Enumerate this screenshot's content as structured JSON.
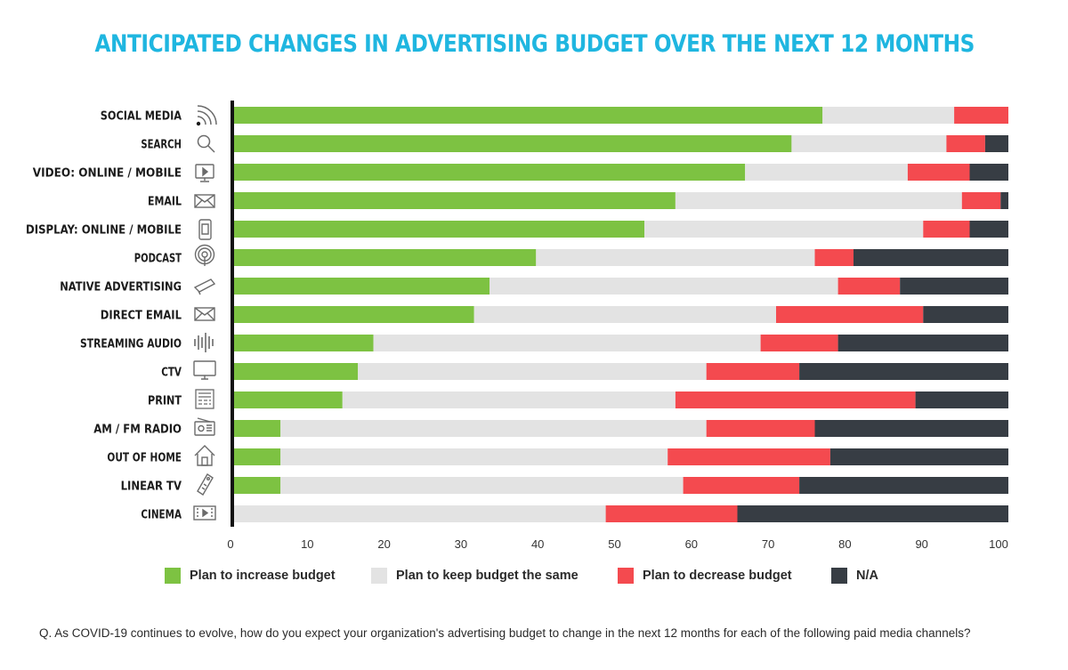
{
  "title": "ANTICIPATED CHANGES IN ADVERTISING BUDGET OVER THE NEXT 12 MONTHS",
  "title_color": "#1fb6e0",
  "footnote": "Q. As COVID-19 continues to evolve, how do you expect your organization's advertising budget to change in the next 12 months for each of the following paid media channels?",
  "legend": [
    {
      "label": "Plan to increase budget",
      "color": "#7dc242"
    },
    {
      "label": "Plan to keep budget the same",
      "color": "#e3e3e3"
    },
    {
      "label": "Plan to decrease budget",
      "color": "#f44a4f"
    },
    {
      "label": "N/A",
      "color": "#373d44"
    }
  ],
  "chart_data": {
    "type": "bar",
    "orientation": "horizontal",
    "stacked": true,
    "title": "ANTICIPATED CHANGES IN ADVERTISING BUDGET OVER THE NEXT 12 MONTHS",
    "xlim": [
      0,
      100
    ],
    "xticks": [
      0,
      10,
      20,
      30,
      40,
      50,
      60,
      70,
      80,
      90,
      100
    ],
    "grid": false,
    "legend_position": "bottom",
    "categories": [
      "SOCIAL MEDIA",
      "SEARCH",
      "VIDEO: ONLINE / MOBILE",
      "EMAIL",
      "DISPLAY: ONLINE / MOBILE",
      "PODCAST",
      "NATIVE ADVERTISING",
      "DIRECT EMAIL",
      "STREAMING AUDIO",
      "CTV",
      "PRINT",
      "AM / FM RADIO",
      "OUT OF HOME",
      "LINEAR TV",
      "CINEMA"
    ],
    "icons": [
      "wifi-signal-icon",
      "search-icon",
      "video-screen-icon",
      "envelope-icon",
      "mobile-phone-icon",
      "podcast-icon",
      "megaphone-icon",
      "envelope-icon",
      "sound-wave-icon",
      "tv-monitor-icon",
      "printer-icon",
      "radio-icon",
      "house-icon",
      "remote-control-icon",
      "film-screen-icon"
    ],
    "series": [
      {
        "name": "Plan to increase budget",
        "color": "#7dc242",
        "values": [
          76,
          72,
          66,
          57,
          53,
          39,
          33,
          31,
          18,
          16,
          14,
          6,
          6,
          6,
          0
        ]
      },
      {
        "name": "Plan to keep budget the same",
        "color": "#e3e3e3",
        "values": [
          17,
          20,
          21,
          37,
          36,
          36,
          45,
          39,
          50,
          45,
          43,
          55,
          50,
          52,
          48
        ]
      },
      {
        "name": "Plan to decrease budget",
        "color": "#f44a4f",
        "values": [
          7,
          5,
          8,
          5,
          6,
          5,
          8,
          19,
          10,
          12,
          31,
          14,
          21,
          15,
          17
        ]
      },
      {
        "name": "N/A",
        "color": "#373d44",
        "values": [
          1,
          4,
          6,
          2,
          6,
          21,
          15,
          12,
          23,
          28,
          13,
          27,
          24,
          28,
          36
        ]
      }
    ]
  }
}
